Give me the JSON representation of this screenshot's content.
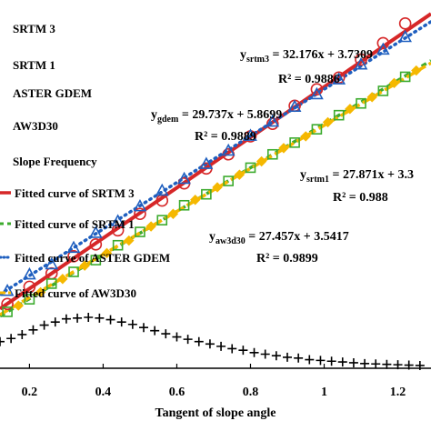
{
  "chart_data": {
    "type": "scatter",
    "xlabel": "Tangent of slope angle",
    "x_ticks": [
      "0.2",
      "0.4",
      "0.6",
      "0.8",
      "1",
      "1.2"
    ],
    "xlim": [
      0.12,
      1.29
    ],
    "ylim": [
      0,
      47
    ],
    "legend_placement": "top-left",
    "legend": [
      "SRTM 3",
      "SRTM 1",
      "ASTER GDEM",
      "AW3D30",
      "Slope Frequency",
      "Fitted curve of SRTM 3",
      "Fitted curve of SRTM 1",
      "Fitted curve of ASTER GDEM",
      "Fitted curve of AW3D30"
    ],
    "colors": {
      "srtm3": "#d62728",
      "srtm1": "#3cab2e",
      "gdem": "#1f5fbf",
      "aw3d30": "#f5b800",
      "frequency": "#000000"
    },
    "fits": [
      {
        "key": "srtm3",
        "slope": 32.176,
        "intercept": 3.7309,
        "r2": 0.9886
      },
      {
        "key": "gdem",
        "slope": 29.737,
        "intercept": 5.8699,
        "r2": 0.9889
      },
      {
        "key": "srtm1",
        "slope": 27.871,
        "intercept": 3.3,
        "r2": 0.988
      },
      {
        "key": "aw3d30",
        "slope": 27.457,
        "intercept": 3.5417,
        "r2": 0.9899
      }
    ],
    "series": [
      {
        "key": "srtm3",
        "marker": "circle",
        "x": [
          0.14,
          0.2,
          0.26,
          0.32,
          0.38,
          0.44,
          0.5,
          0.56,
          0.62,
          0.68,
          0.74,
          0.8,
          0.86,
          0.92,
          0.98,
          1.04,
          1.1,
          1.16,
          1.22
        ],
        "y": [
          8.2,
          10.4,
          12.1,
          14.3,
          15.8,
          17.6,
          19.7,
          21.4,
          23.6,
          25.5,
          27.3,
          29.6,
          31.2,
          33.5,
          35.6,
          37.1,
          39.4,
          41.5,
          44.0
        ]
      },
      {
        "key": "srtm1",
        "marker": "square",
        "x": [
          0.14,
          0.2,
          0.26,
          0.32,
          0.38,
          0.44,
          0.5,
          0.56,
          0.62,
          0.68,
          0.74,
          0.8,
          0.86,
          0.92,
          0.98,
          1.04,
          1.1,
          1.16,
          1.22
        ],
        "y": [
          7.2,
          8.8,
          10.8,
          12.3,
          13.8,
          15.7,
          17.4,
          18.9,
          20.8,
          22.2,
          23.9,
          25.6,
          27.3,
          28.8,
          30.5,
          32.3,
          33.8,
          35.4,
          37.2
        ]
      },
      {
        "key": "gdem",
        "marker": "triangle",
        "x": [
          0.14,
          0.2,
          0.26,
          0.32,
          0.38,
          0.44,
          0.5,
          0.56,
          0.62,
          0.68,
          0.74,
          0.8,
          0.86,
          0.92,
          0.98,
          1.04,
          1.1,
          1.16,
          1.22
        ],
        "y": [
          9.9,
          12.0,
          13.3,
          15.4,
          17.3,
          18.8,
          20.7,
          22.7,
          24.2,
          26.1,
          27.8,
          29.7,
          31.5,
          33.4,
          35.0,
          36.9,
          38.8,
          40.7,
          42.3
        ]
      },
      {
        "key": "aw3d30",
        "marker": "diamond",
        "x": [
          0.17,
          0.23,
          0.29,
          0.35,
          0.41,
          0.47,
          0.53,
          0.59,
          0.65,
          0.71,
          0.77,
          0.83,
          0.89,
          0.95,
          1.01,
          1.07,
          1.13,
          1.19,
          1.25
        ],
        "y": [
          8.0,
          9.7,
          11.4,
          13.1,
          14.7,
          16.3,
          18.1,
          19.7,
          21.5,
          23.1,
          24.7,
          26.4,
          28.1,
          29.6,
          31.4,
          33.1,
          34.6,
          36.4,
          38.0
        ]
      },
      {
        "key": "frequency",
        "marker": "plus",
        "x": [
          0.12,
          0.15,
          0.18,
          0.21,
          0.24,
          0.27,
          0.3,
          0.33,
          0.36,
          0.39,
          0.42,
          0.45,
          0.48,
          0.51,
          0.54,
          0.57,
          0.6,
          0.63,
          0.66,
          0.69,
          0.72,
          0.75,
          0.78,
          0.81,
          0.84,
          0.87,
          0.9,
          0.93,
          0.96,
          0.99,
          1.02,
          1.05,
          1.08,
          1.11,
          1.14,
          1.17,
          1.2,
          1.23,
          1.26
        ],
        "y": [
          3.4,
          3.8,
          4.3,
          4.9,
          5.5,
          5.9,
          6.3,
          6.4,
          6.5,
          6.4,
          6.2,
          5.9,
          5.6,
          5.2,
          4.8,
          4.4,
          4.0,
          3.7,
          3.4,
          3.1,
          2.8,
          2.5,
          2.3,
          2.0,
          1.8,
          1.6,
          1.4,
          1.3,
          1.1,
          1.0,
          0.9,
          0.8,
          0.7,
          0.6,
          0.55,
          0.5,
          0.45,
          0.4,
          0.35
        ]
      }
    ],
    "equations": {
      "srtm3": {
        "prefix": "y",
        "sub": "srtm3",
        "rhs": " = 32.176x + 3.7309",
        "r2": "R² = 0.9886"
      },
      "gdem": {
        "prefix": "y",
        "sub": "gdem",
        "rhs": " = 29.737x + 5.8699",
        "r2": "R² = 0.9889"
      },
      "srtm1": {
        "prefix": "y",
        "sub": "srtm1",
        "rhs": " = 27.871x + 3.3",
        "r2": "R² = 0.988"
      },
      "aw3d30": {
        "prefix": "y",
        "sub": "aw3d30",
        "rhs": " = 27.457x + 3.5417",
        "r2": "R² = 0.9899"
      }
    }
  }
}
